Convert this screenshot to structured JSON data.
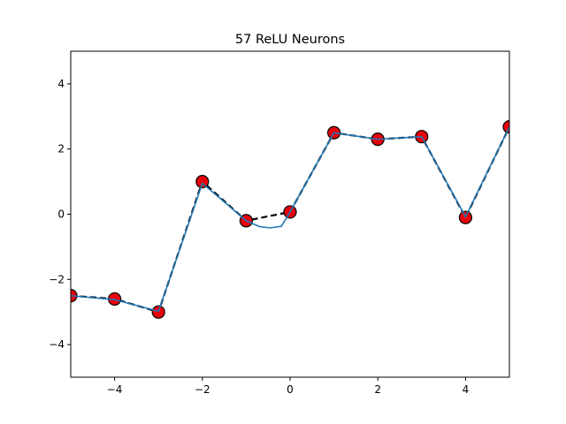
{
  "chart_data": {
    "type": "line",
    "title": "57 ReLU Neurons",
    "xlabel": "",
    "ylabel": "",
    "xlim": [
      -5,
      5
    ],
    "ylim": [
      -5,
      5
    ],
    "xticks": [
      -4,
      -2,
      0,
      2,
      4
    ],
    "yticks": [
      -4,
      -2,
      0,
      2,
      4
    ],
    "xtick_labels": [
      "−4",
      "−2",
      "0",
      "2",
      "4"
    ],
    "ytick_labels": [
      "−4",
      "−2",
      "0",
      "2",
      "4"
    ],
    "grid": false,
    "colors": {
      "target_line": "#000000",
      "fit_line": "#1f77b4",
      "marker_fill": "#e8000b",
      "marker_edge": "#000000"
    },
    "target_points": {
      "x": [
        -5,
        -4,
        -3,
        -2,
        -1,
        0,
        1,
        2,
        3,
        4,
        5
      ],
      "y": [
        -2.5,
        -2.6,
        -3.0,
        1.0,
        -0.2,
        0.07,
        2.5,
        2.3,
        2.38,
        -0.1,
        2.68
      ]
    },
    "fit_curve": {
      "x": [
        -5,
        -4,
        -3,
        -2,
        -1,
        -0.7,
        -0.45,
        -0.2,
        0,
        1,
        2,
        3,
        4,
        5
      ],
      "y": [
        -2.5,
        -2.62,
        -2.98,
        0.95,
        -0.2,
        -0.38,
        -0.42,
        -0.37,
        0.07,
        2.5,
        2.3,
        2.38,
        -0.08,
        2.68
      ]
    }
  }
}
